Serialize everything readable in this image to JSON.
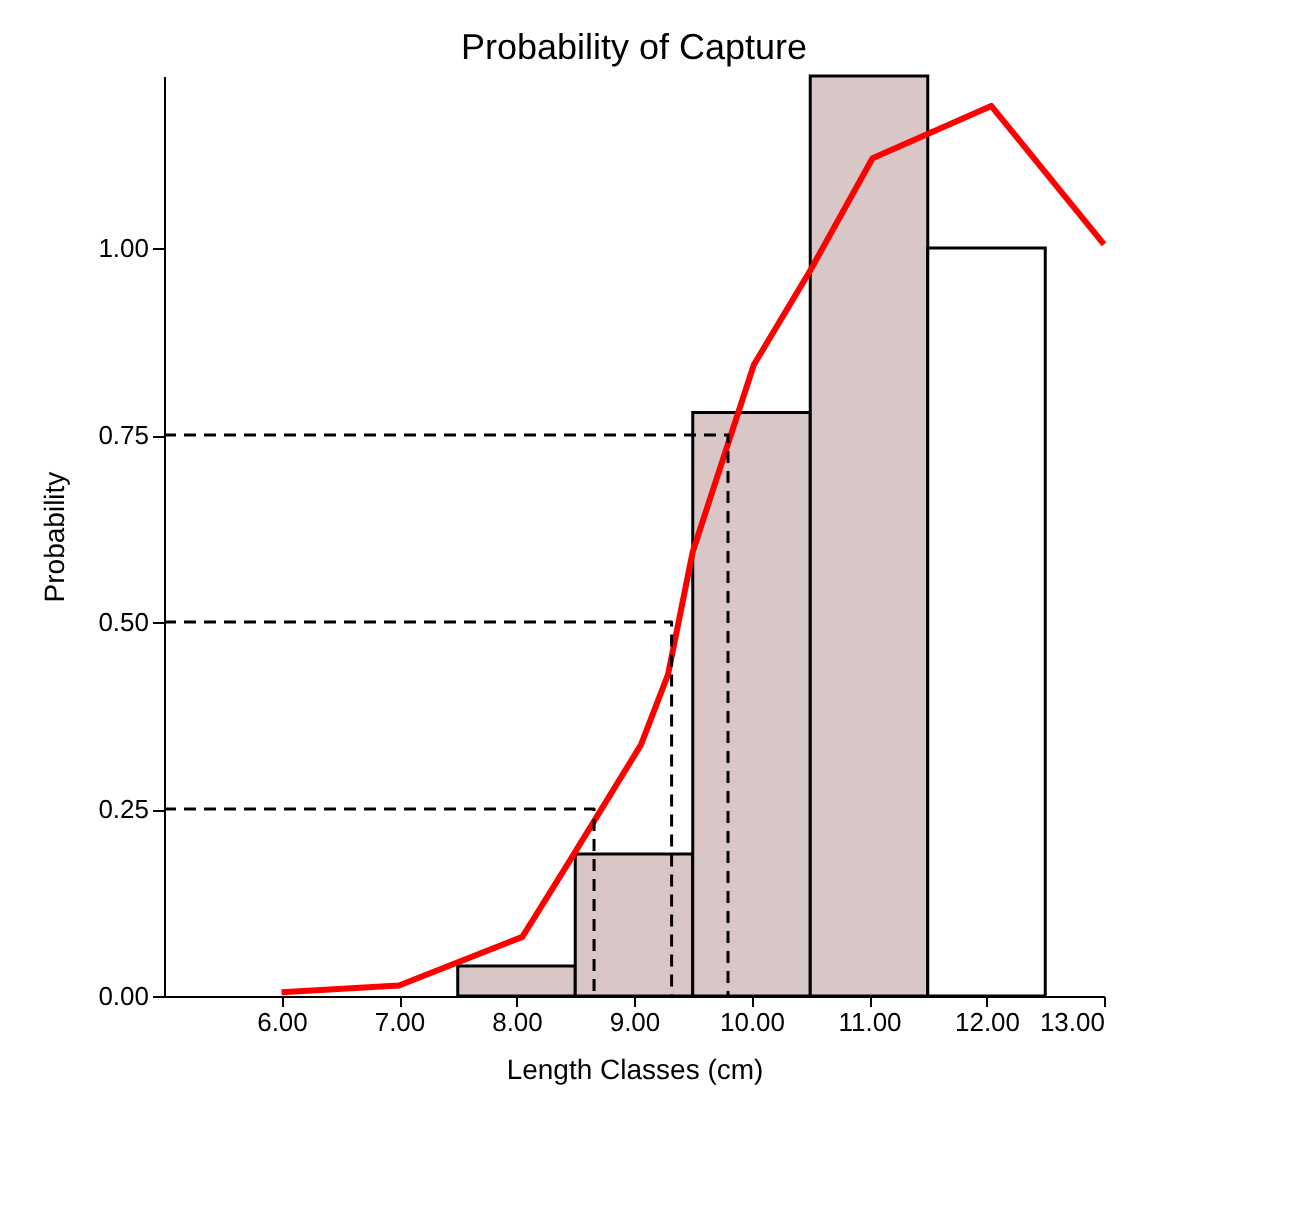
{
  "chart_data": {
    "type": "histogram",
    "title": "Probability of Capture",
    "xlabel": "Length Classes (cm)",
    "ylabel": "Probability",
    "xlim": [
      5,
      13
    ],
    "ylim": [
      0,
      1.23
    ],
    "xticks": [
      {
        "value": 6,
        "label": "6.00"
      },
      {
        "value": 7,
        "label": "7.00"
      },
      {
        "value": 8,
        "label": "8.00"
      },
      {
        "value": 9,
        "label": "9.00"
      },
      {
        "value": 10,
        "label": "10.00"
      },
      {
        "value": 11,
        "label": "11.00"
      },
      {
        "value": 12,
        "label": "12.00"
      },
      {
        "value": 13,
        "label": "13.00"
      }
    ],
    "yticks": [
      {
        "value": 0,
        "label": "0.00"
      },
      {
        "value": 0.25,
        "label": "0.25"
      },
      {
        "value": 0.5,
        "label": "0.50"
      },
      {
        "value": 0.75,
        "label": "0.75"
      },
      {
        "value": 1,
        "label": "1.00"
      }
    ],
    "grid": false,
    "series": [
      {
        "bins": [
          7.5,
          8.5,
          9.5,
          10.5,
          11.5,
          12.5
        ],
        "values": [
          0.04,
          0.19,
          0.78,
          1.23,
          1.0
        ],
        "colors": [
          "#d9c6c6",
          "#d9c6c6",
          "#d9c6c6",
          "#d9c6c6",
          "#ffffff"
        ]
      },
      {
        "type": "line",
        "color": "#ff0000",
        "line_style": "solid",
        "x": [
          6.0,
          7.0,
          8.05,
          8.45,
          9.06,
          9.29,
          9.5,
          10.02,
          10.5,
          11.03,
          12.04,
          13.0
        ],
        "values": [
          0.005,
          0.014,
          0.079,
          0.18,
          0.336,
          0.43,
          0.594,
          0.844,
          0.97,
          1.12,
          1.19,
          1.005
        ]
      },
      {
        "type": "line",
        "color": "#000000",
        "line_style": "dashed",
        "x": [
          5,
          8.66,
          8.66
        ],
        "values": [
          0.25,
          0.25,
          0
        ]
      },
      {
        "type": "line",
        "color": "#000000",
        "line_style": "dashed",
        "x": [
          5,
          9.32,
          9.32
        ],
        "values": [
          0.5,
          0.5,
          0
        ]
      },
      {
        "type": "line",
        "color": "#000000",
        "line_style": "dashed",
        "x": [
          5,
          9.8,
          9.8
        ],
        "values": [
          0.75,
          0.75,
          0
        ]
      }
    ]
  }
}
